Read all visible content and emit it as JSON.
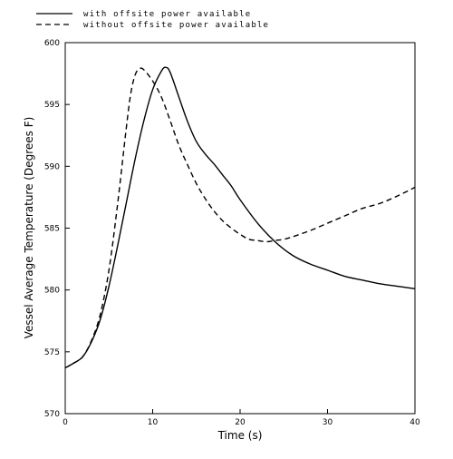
{
  "chart_data": {
    "type": "line",
    "title": "",
    "xlabel": "Time  (s)",
    "ylabel": "Vessel Average Temperature (Degrees F)",
    "xlim": [
      0,
      40
    ],
    "ylim": [
      570,
      600
    ],
    "x_ticks": [
      "0",
      "10",
      "20",
      "30",
      "40"
    ],
    "y_ticks": [
      "570",
      "575",
      "580",
      "585",
      "590",
      "595",
      "600"
    ],
    "grid": false,
    "legend_position": "top-left, outside plot",
    "series": [
      {
        "name": "with offsite power available",
        "style": "solid",
        "color": "#000000",
        "x": [
          0,
          1,
          2,
          3,
          4,
          5,
          6,
          7,
          8,
          9,
          10,
          11,
          11.5,
          12,
          13,
          14,
          15,
          16,
          17,
          18,
          19,
          20,
          22,
          24,
          26,
          28,
          30,
          32,
          34,
          36,
          38,
          40
        ],
        "y": [
          573.7,
          574.1,
          574.6,
          575.8,
          577.6,
          580.3,
          583.6,
          587.1,
          590.6,
          593.7,
          596.2,
          597.7,
          598.0,
          597.6,
          595.6,
          593.6,
          592.0,
          591.0,
          590.2,
          589.3,
          588.4,
          587.3,
          585.4,
          583.9,
          582.8,
          582.1,
          581.6,
          581.1,
          580.8,
          580.5,
          580.3,
          580.1
        ]
      },
      {
        "name": "without offsite power available",
        "style": "dashed",
        "color": "#000000",
        "x": [
          0,
          1,
          2,
          3,
          4,
          5,
          6,
          7,
          7.5,
          8,
          8.5,
          9,
          10,
          11,
          12,
          13,
          14,
          15,
          16,
          17,
          18,
          19,
          20,
          21,
          22,
          23,
          24,
          25,
          26,
          28,
          30,
          32,
          34,
          36,
          38,
          40
        ],
        "y": [
          573.7,
          574.1,
          574.6,
          575.9,
          578.0,
          581.6,
          587.0,
          593.2,
          595.9,
          597.4,
          597.9,
          597.8,
          596.9,
          595.6,
          593.7,
          591.7,
          590.1,
          588.6,
          587.4,
          586.4,
          585.6,
          585.0,
          584.5,
          584.1,
          584.0,
          583.9,
          584.0,
          584.1,
          584.3,
          584.8,
          585.4,
          586.0,
          586.6,
          587.0,
          587.6,
          588.3
        ]
      }
    ]
  }
}
